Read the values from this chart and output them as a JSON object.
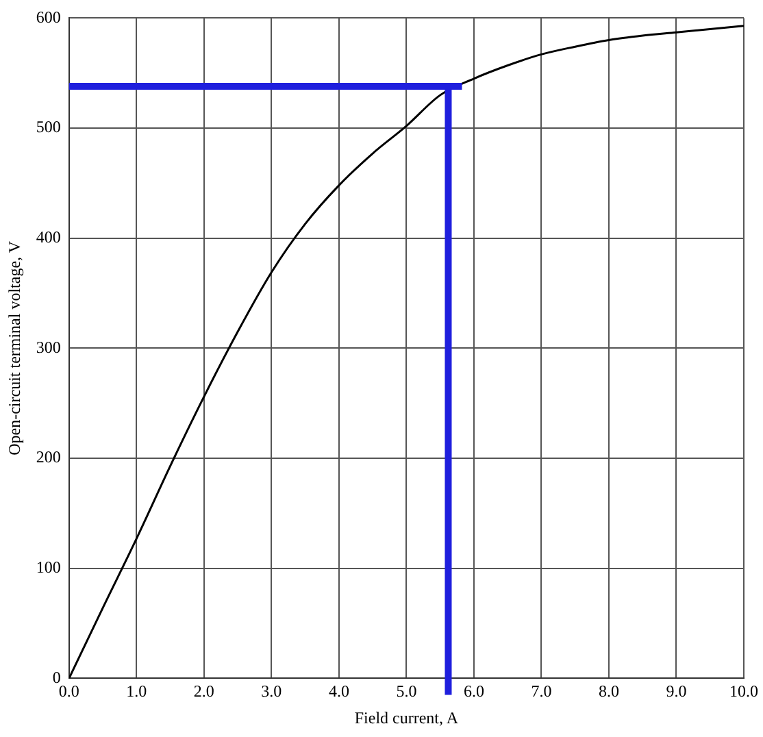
{
  "chart_data": {
    "type": "line",
    "xlabel": "Field current, A",
    "ylabel": "Open-circuit terminal voltage, V",
    "x": [
      0,
      0.5,
      1,
      1.5,
      2,
      2.5,
      3,
      3.5,
      4,
      4.5,
      5,
      5.5,
      6,
      6.5,
      7,
      7.5,
      8,
      8.5,
      9,
      9.5,
      10
    ],
    "series": [
      {
        "color": "#000000",
        "values": [
          0,
          64,
          127,
          193,
          256,
          315,
          369,
          413,
          448,
          477,
          502,
          530,
          545,
          557,
          567,
          574,
          580,
          584,
          587,
          590,
          593
        ]
      }
    ],
    "xlim": [
      0,
      10
    ],
    "xticks": [
      {
        "value": 0,
        "label": "0.0"
      },
      {
        "value": 1,
        "label": "1.0"
      },
      {
        "value": 2,
        "label": "2.0"
      },
      {
        "value": 3,
        "label": "3.0"
      },
      {
        "value": 4,
        "label": "4.0"
      },
      {
        "value": 5,
        "label": "5.0"
      },
      {
        "value": 6,
        "label": "6.0"
      },
      {
        "value": 7,
        "label": "7.0"
      },
      {
        "value": 8,
        "label": "8.0"
      },
      {
        "value": 9,
        "label": "9.0"
      },
      {
        "value": 10,
        "label": "10.0"
      }
    ],
    "ylim": [
      0,
      600
    ],
    "yticks": [
      0,
      100,
      200,
      300,
      400,
      500,
      600
    ],
    "grid": true,
    "legend": false,
    "marker": "none",
    "line_style": "solid",
    "ref_lines": [
      {
        "axis": "y",
        "value": 538,
        "color": "#1f1fdd"
      },
      {
        "axis": "x",
        "value": 5.62,
        "color": "#1f1fdd"
      }
    ]
  }
}
